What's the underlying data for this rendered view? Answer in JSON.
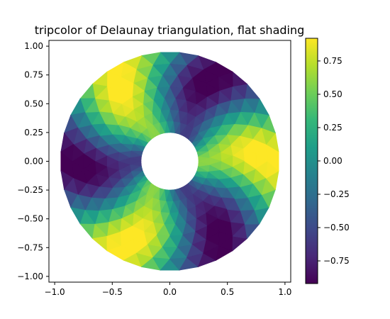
{
  "chart_data": {
    "type": "heatmap",
    "title": "tripcolor of Delaunay triangulation, flat shading",
    "xlabel": "",
    "ylabel": "",
    "xlim": [
      -1.05,
      1.05
    ],
    "ylim": [
      -1.05,
      1.05
    ],
    "x_ticks": [
      "−1.0",
      "−0.5",
      "0.0",
      "0.5",
      "1.0"
    ],
    "x_tick_values": [
      -1.0,
      -0.5,
      0.0,
      0.5,
      1.0
    ],
    "y_ticks": [
      "1.00",
      "0.75",
      "0.50",
      "0.25",
      "0.00",
      "−0.25",
      "−0.50",
      "−0.75",
      "−1.00"
    ],
    "y_tick_values": [
      1.0,
      0.75,
      0.5,
      0.25,
      0.0,
      -0.25,
      -0.5,
      -0.75,
      -1.0
    ],
    "colorbar": {
      "ticks": [
        "0.75",
        "0.50",
        "0.25",
        "0.00",
        "−0.25",
        "−0.50",
        "−0.75"
      ],
      "tick_values": [
        0.75,
        0.5,
        0.25,
        0.0,
        -0.25,
        -0.5,
        -0.75
      ],
      "range": [
        -0.92,
        0.92
      ],
      "colormap": "viridis"
    },
    "annulus": {
      "inner_radius": 0.25,
      "outer_radius": 0.95,
      "n_radii": 8,
      "n_angles": 36
    },
    "grid": false,
    "shading": "flat"
  },
  "colors": {
    "viridis": [
      "#440154",
      "#482878",
      "#3e4989",
      "#31688e",
      "#26828e",
      "#1f9e89",
      "#35b779",
      "#6ece58",
      "#b5de2b",
      "#fde725"
    ]
  }
}
